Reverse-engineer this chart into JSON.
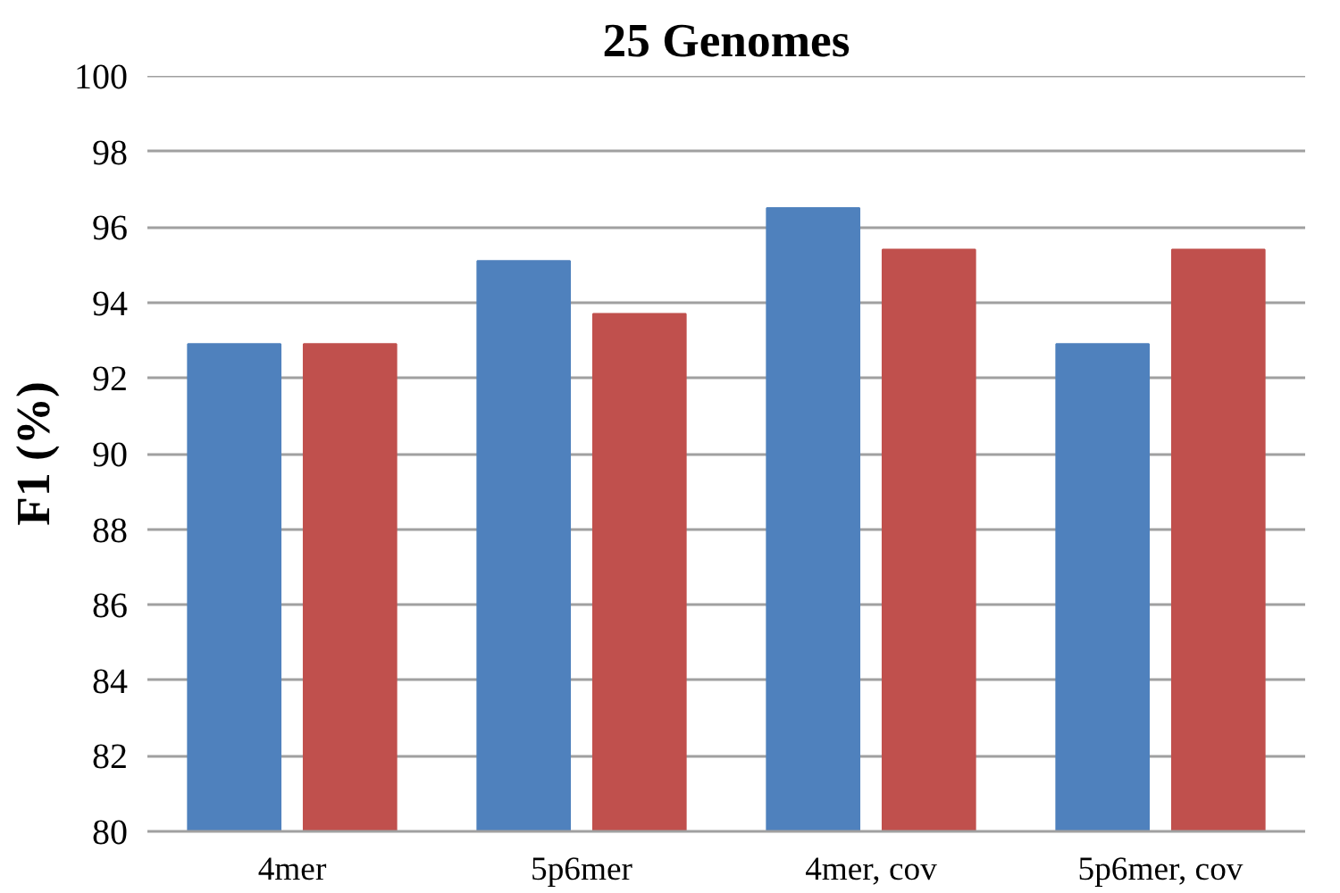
{
  "chart_data": {
    "type": "bar",
    "title": "25 Genomes",
    "ylabel": "F1 (%)",
    "categories": [
      "4mer",
      "5p6mer",
      "4mer, cov",
      "5p6mer, cov"
    ],
    "series": [
      {
        "color": "#4f81bd",
        "values": [
          92.9,
          95.1,
          96.5,
          92.9
        ]
      },
      {
        "color": "#c0504d",
        "values": [
          92.9,
          93.7,
          95.4,
          95.4
        ]
      }
    ],
    "ylim": [
      80,
      100
    ],
    "yticks": [
      80,
      82,
      84,
      86,
      88,
      90,
      92,
      94,
      96,
      98,
      100
    ],
    "grid": "y"
  }
}
